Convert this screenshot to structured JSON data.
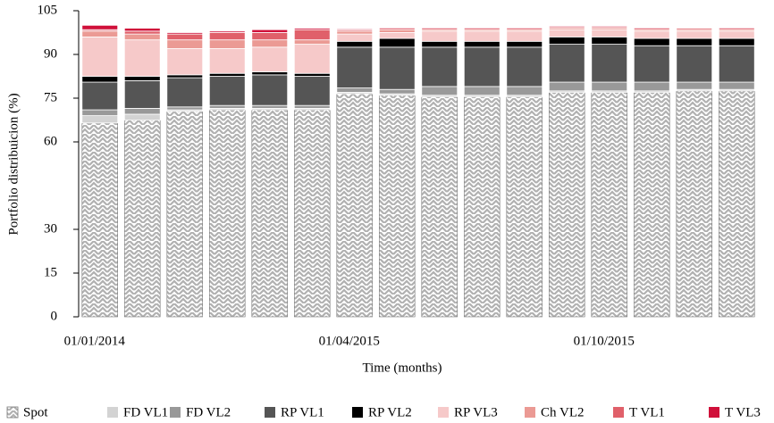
{
  "chart_data": {
    "type": "stacked_bar",
    "x_label": "Time (months)",
    "y_label": "Portfolio distribuicion (%)",
    "categories": [
      "01/01/2014",
      null,
      null,
      null,
      null,
      null,
      "01/04/2015",
      null,
      null,
      null,
      null,
      null,
      "01/10/2015",
      null,
      null,
      null
    ],
    "ylim": [
      0,
      105
    ],
    "yticks": [
      0,
      15,
      30,
      60,
      75,
      90,
      105
    ],
    "grid": false,
    "legend": "bottom",
    "series": [
      {
        "name": "Spot",
        "color": "#b0b0b0",
        "pattern": "chevron",
        "values": [
          66.5,
          67.5,
          70.5,
          71,
          71,
          71,
          76.5,
          76,
          75.5,
          75.5,
          75.5,
          77,
          77,
          77,
          77.5,
          77.5
        ]
      },
      {
        "name": "FD VL1",
        "color": "#d3d3d3",
        "values": [
          2.5,
          2,
          0.5,
          0.5,
          0.5,
          0.5,
          0.5,
          0.5,
          0.5,
          0.5,
          0.5,
          0.5,
          0.5,
          0.5,
          0.5,
          0.5
        ]
      },
      {
        "name": "FD VL2",
        "color": "#999999",
        "values": [
          2,
          2,
          1,
          1,
          1,
          1,
          1.5,
          1.5,
          3,
          3,
          3,
          3,
          3,
          3,
          2.5,
          2.5
        ]
      },
      {
        "name": "RP VL1",
        "color": "#555555",
        "values": [
          9.5,
          9.5,
          10,
          10,
          10.5,
          10,
          14,
          14.5,
          13.5,
          13.5,
          13.5,
          13,
          13,
          12.5,
          12.5,
          12.5
        ]
      },
      {
        "name": "RP VL2",
        "color": "#000000",
        "values": [
          2,
          1.5,
          1,
          1,
          1,
          1,
          2,
          3,
          2,
          2,
          2,
          2.5,
          2.5,
          2.5,
          2.5,
          2.5
        ]
      },
      {
        "name": "RP VL3",
        "color": "#f6c9c9",
        "values": [
          13.5,
          12.5,
          9,
          8.5,
          8.5,
          10,
          2.5,
          2,
          3.5,
          3.5,
          3.5,
          2.5,
          2.5,
          2.5,
          2.5,
          2.5
        ]
      },
      {
        "name": "Ch VL2",
        "color": "#eb9a94",
        "values": [
          2,
          2,
          3,
          3,
          2.5,
          1.5,
          1,
          1,
          0.5,
          0.5,
          0.5,
          0.5,
          0.5,
          0.5,
          0.5,
          0.5
        ]
      },
      {
        "name": "T VL1",
        "color": "#e0606a",
        "values": [
          0.5,
          1,
          2,
          2.5,
          2.5,
          3.5,
          0.5,
          0.5,
          0.5,
          0.5,
          0.5,
          0.5,
          0.5,
          0.5,
          0.5,
          0.5
        ]
      },
      {
        "name": "T VL3",
        "color": "#d0103a",
        "values": [
          1.5,
          1,
          0.5,
          0.5,
          1,
          0.5,
          0.3,
          0.3,
          0.3,
          0.3,
          0.3,
          0.3,
          0.3,
          0.3,
          0.1,
          0.3
        ]
      }
    ]
  }
}
